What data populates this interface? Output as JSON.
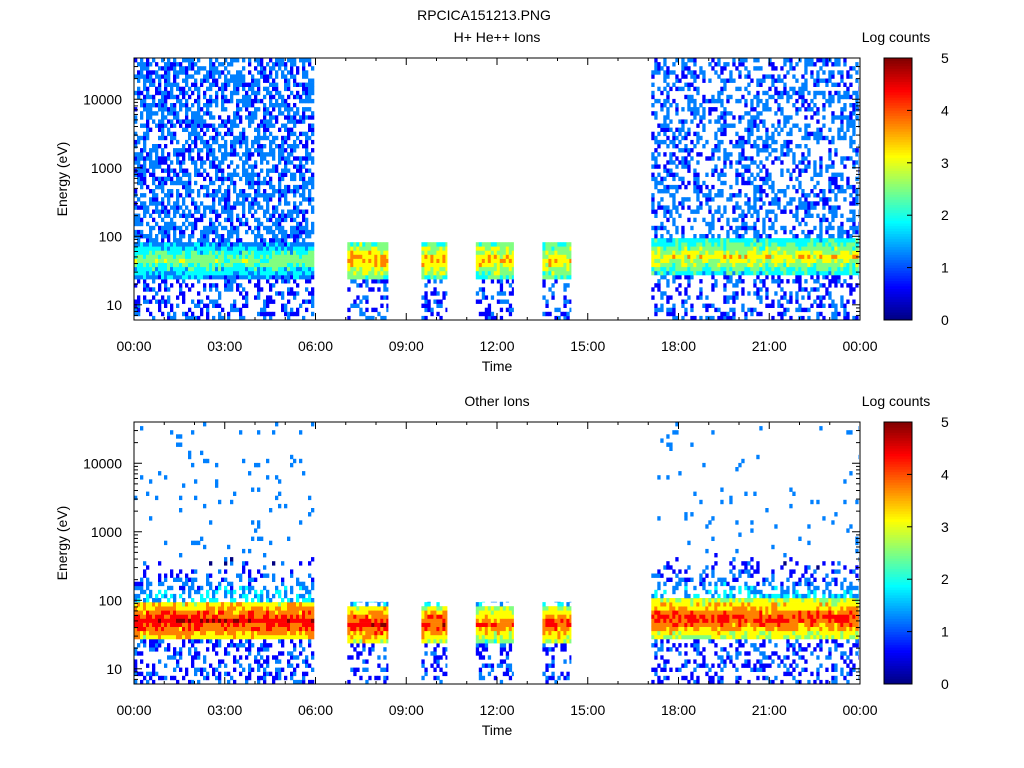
{
  "window": {
    "title": "RPCICA151213.PNG"
  },
  "colormap": [
    "#000080",
    "#0000ff",
    "#0080ff",
    "#00ffff",
    "#80ff80",
    "#ffff00",
    "#ff8000",
    "#ff0000",
    "#800000"
  ],
  "chart_data": [
    {
      "type": "heatmap",
      "title": "H+ He++ Ions",
      "xlabel": "Time",
      "ylabel": "Energy (eV)",
      "yscale": "log",
      "ylim": [
        6,
        40000
      ],
      "xlim": [
        0,
        24
      ],
      "xticks": [
        "00:00",
        "03:00",
        "06:00",
        "09:00",
        "12:00",
        "15:00",
        "18:00",
        "21:00",
        "00:00"
      ],
      "yticks": [
        {
          "value": 10,
          "label": "10"
        },
        {
          "value": 100,
          "label": "100"
        },
        {
          "value": 1000,
          "label": "1000"
        },
        {
          "value": 10000,
          "label": "10000"
        }
      ],
      "colorbar": {
        "label": "Log counts",
        "range": [
          0,
          5
        ],
        "ticks": [
          "0",
          "1",
          "2",
          "3",
          "4",
          "5"
        ]
      },
      "segments": [
        {
          "start_hour": 0.0,
          "end_hour": 5.95,
          "emax": 40000,
          "band_center_ev": 45,
          "band_level": 2.6,
          "high_energy_level": 0.8,
          "high_energy_density": 0.55
        },
        {
          "start_hour": 7.05,
          "end_hour": 8.4,
          "emax": 95,
          "band_center_ev": 45,
          "band_level": 3.7,
          "high_energy_level": 0,
          "high_energy_density": 0
        },
        {
          "start_hour": 9.5,
          "end_hour": 10.35,
          "emax": 95,
          "band_center_ev": 45,
          "band_level": 3.6,
          "high_energy_level": 0,
          "high_energy_density": 0
        },
        {
          "start_hour": 11.3,
          "end_hour": 12.55,
          "emax": 95,
          "band_center_ev": 45,
          "band_level": 3.5,
          "high_energy_level": 0,
          "high_energy_density": 0
        },
        {
          "start_hour": 13.5,
          "end_hour": 14.45,
          "emax": 95,
          "band_center_ev": 45,
          "band_level": 3.4,
          "high_energy_level": 0,
          "high_energy_density": 0
        },
        {
          "start_hour": 17.1,
          "end_hour": 23.95,
          "emax": 40000,
          "band_center_ev": 50,
          "band_level": 3.2,
          "high_energy_level": 0.8,
          "high_energy_density": 0.4
        }
      ]
    },
    {
      "type": "heatmap",
      "title": "Other Ions",
      "xlabel": "Time",
      "ylabel": "Energy (eV)",
      "yscale": "log",
      "ylim": [
        6,
        40000
      ],
      "xlim": [
        0,
        24
      ],
      "xticks": [
        "00:00",
        "03:00",
        "06:00",
        "09:00",
        "12:00",
        "15:00",
        "18:00",
        "21:00",
        "00:00"
      ],
      "yticks": [
        {
          "value": 10,
          "label": "10"
        },
        {
          "value": 100,
          "label": "100"
        },
        {
          "value": 1000,
          "label": "1000"
        },
        {
          "value": 10000,
          "label": "10000"
        }
      ],
      "colorbar": {
        "label": "Log counts",
        "range": [
          0,
          5
        ],
        "ticks": [
          "0",
          "1",
          "2",
          "3",
          "4",
          "5"
        ]
      },
      "segments": [
        {
          "start_hour": 0.0,
          "end_hour": 5.95,
          "emax": 40000,
          "band_center_ev": 50,
          "band_level": 4.5,
          "high_energy_level": 1.0,
          "high_energy_density": 0.04
        },
        {
          "start_hour": 7.05,
          "end_hour": 8.4,
          "emax": 95,
          "band_center_ev": 45,
          "band_level": 4.4,
          "high_energy_level": 0,
          "high_energy_density": 0
        },
        {
          "start_hour": 9.5,
          "end_hour": 10.35,
          "emax": 95,
          "band_center_ev": 45,
          "band_level": 4.3,
          "high_energy_level": 0,
          "high_energy_density": 0
        },
        {
          "start_hour": 11.3,
          "end_hour": 12.55,
          "emax": 95,
          "band_center_ev": 45,
          "band_level": 3.9,
          "high_energy_level": 0,
          "high_energy_density": 0
        },
        {
          "start_hour": 13.5,
          "end_hour": 14.45,
          "emax": 95,
          "band_center_ev": 45,
          "band_level": 4.2,
          "high_energy_level": 0,
          "high_energy_density": 0
        },
        {
          "start_hour": 17.1,
          "end_hour": 23.95,
          "emax": 40000,
          "band_center_ev": 55,
          "band_level": 4.3,
          "high_energy_level": 1.0,
          "high_energy_density": 0.03
        }
      ]
    }
  ]
}
